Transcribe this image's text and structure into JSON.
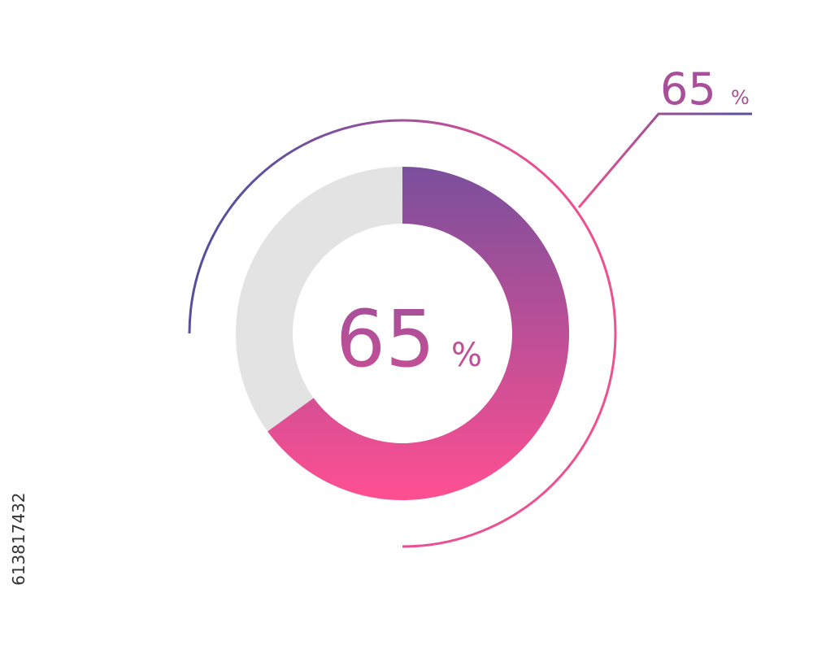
{
  "chart_data": {
    "type": "donut",
    "values": [
      65
    ],
    "unit": "%",
    "max": 100,
    "color_start": "#7a4f9c",
    "color_end": "#ff4f91",
    "track_color": "#e3e3e3"
  },
  "watermark": "613817432"
}
